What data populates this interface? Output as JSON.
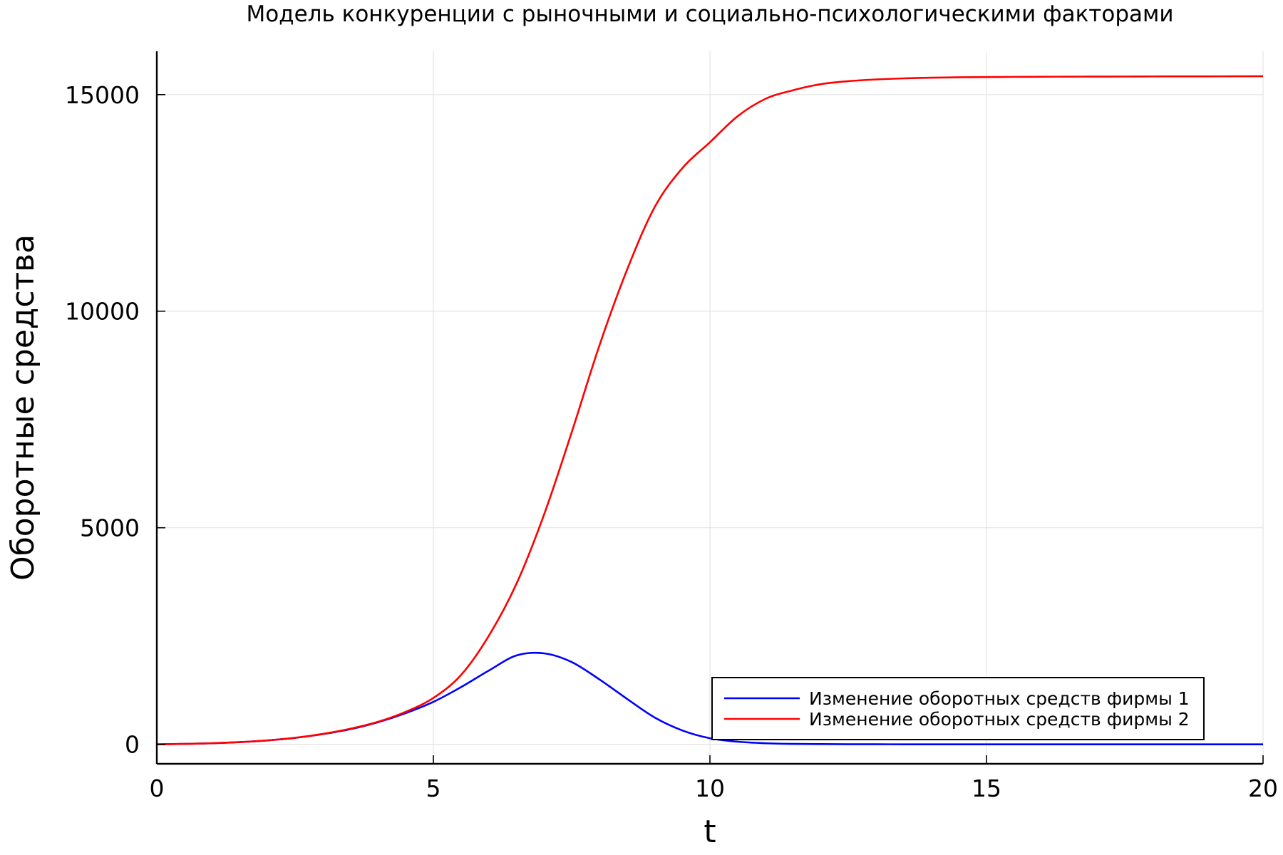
{
  "chart_data": {
    "type": "line",
    "title": "Модель конкуренции с рыночными и социально-психологическими факторами",
    "xlabel": "t",
    "ylabel": "Оборотные средства",
    "xlim": [
      0,
      20
    ],
    "ylim": [
      -450,
      16000
    ],
    "xticks": [
      0,
      5,
      10,
      15,
      20
    ],
    "xtick_labels": [
      "0",
      "5",
      "10",
      "15",
      "20"
    ],
    "yticks": [
      0,
      5000,
      10000,
      15000
    ],
    "ytick_labels": [
      "0",
      "5000",
      "10000",
      "15000"
    ],
    "grid": true,
    "legend_position": "bottom-right",
    "x": [
      0,
      0.5,
      1,
      1.5,
      2,
      2.5,
      3,
      3.5,
      4,
      4.5,
      5,
      5.5,
      6,
      6.5,
      7,
      7.5,
      8,
      8.5,
      9,
      9.5,
      10,
      10.5,
      11,
      11.5,
      12,
      12.5,
      13,
      13.5,
      14,
      14.5,
      15,
      15.5,
      16,
      16.5,
      17,
      17.5,
      18,
      18.5,
      19,
      19.5,
      20
    ],
    "series": [
      {
        "name": "Изменение оборотных средств фирмы 1",
        "color": "#0000ff",
        "values": [
          0,
          10,
          25,
          50,
          90,
          150,
          235,
          350,
          510,
          720,
          980,
          1320,
          1700,
          2050,
          2100,
          1900,
          1500,
          1050,
          620,
          320,
          140,
          60,
          25,
          10,
          5,
          2,
          1,
          0,
          0,
          0,
          0,
          0,
          0,
          0,
          0,
          0,
          0,
          0,
          0,
          0,
          0
        ]
      },
      {
        "name": "Изменение оборотных средств фирмы 2",
        "color": "#ff0000",
        "values": [
          0,
          10,
          25,
          50,
          90,
          150,
          240,
          360,
          520,
          750,
          1070,
          1600,
          2500,
          3700,
          5300,
          7200,
          9200,
          10950,
          12400,
          13300,
          13900,
          14500,
          14900,
          15100,
          15240,
          15310,
          15350,
          15375,
          15390,
          15400,
          15405,
          15410,
          15413,
          15415,
          15417,
          15418,
          15420,
          15421,
          15422,
          15423,
          15425
        ]
      }
    ]
  }
}
